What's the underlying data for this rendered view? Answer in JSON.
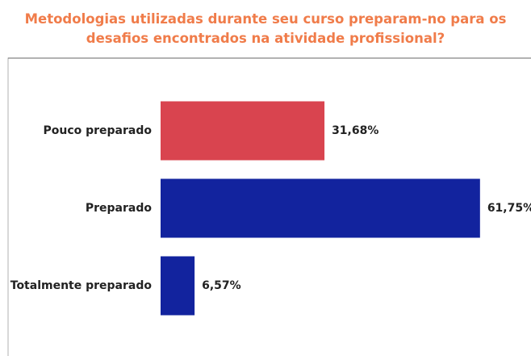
{
  "chart_data": {
    "type": "bar",
    "orientation": "horizontal",
    "title": "Metodologias utilizadas durante seu curso preparam-no para os desafios encontrados na atividade profissional?",
    "categories": [
      "Pouco preparado",
      "Preparado",
      "Totalmente preparado"
    ],
    "values": [
      31.68,
      61.75,
      6.57
    ],
    "value_labels": [
      "31,68%",
      "61,75%",
      "6,57%"
    ],
    "colors": [
      "#d9444f",
      "#12239e",
      "#12239e"
    ]
  }
}
